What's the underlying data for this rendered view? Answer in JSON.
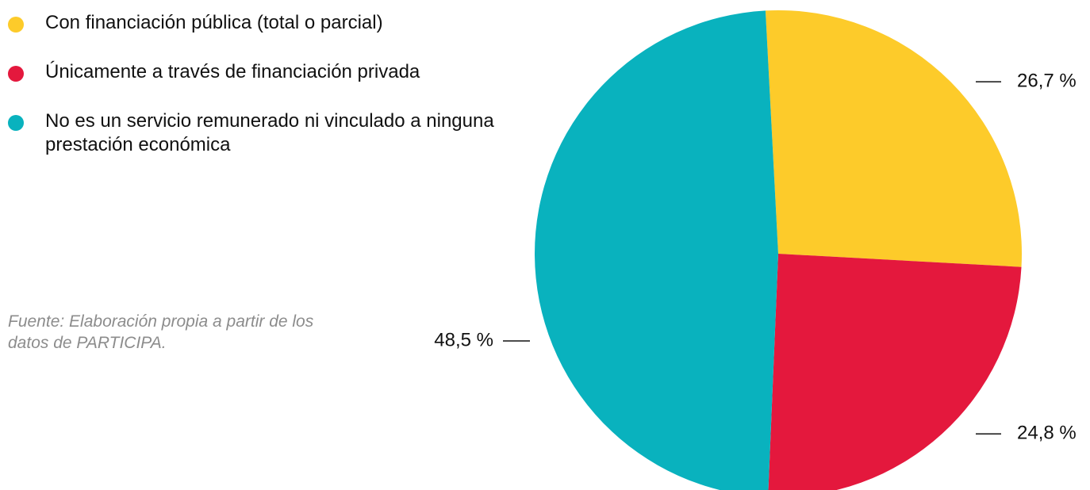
{
  "chart_data": {
    "type": "pie",
    "categories": [
      "Con financiación pública (total o parcial)",
      "Únicamente a través de financiación privada",
      "No es un servicio remunerado ni vinculado a ninguna prestación económica"
    ],
    "values": [
      26.7,
      24.8,
      48.5
    ],
    "value_labels": [
      "26,7 %",
      "24,8 %",
      "48,5 %"
    ],
    "colors": [
      "#fdcb2a",
      "#e4183d",
      "#09b2be"
    ],
    "note": "Fuente: Elaboración propia a partir de los datos de PARTICIPA."
  }
}
